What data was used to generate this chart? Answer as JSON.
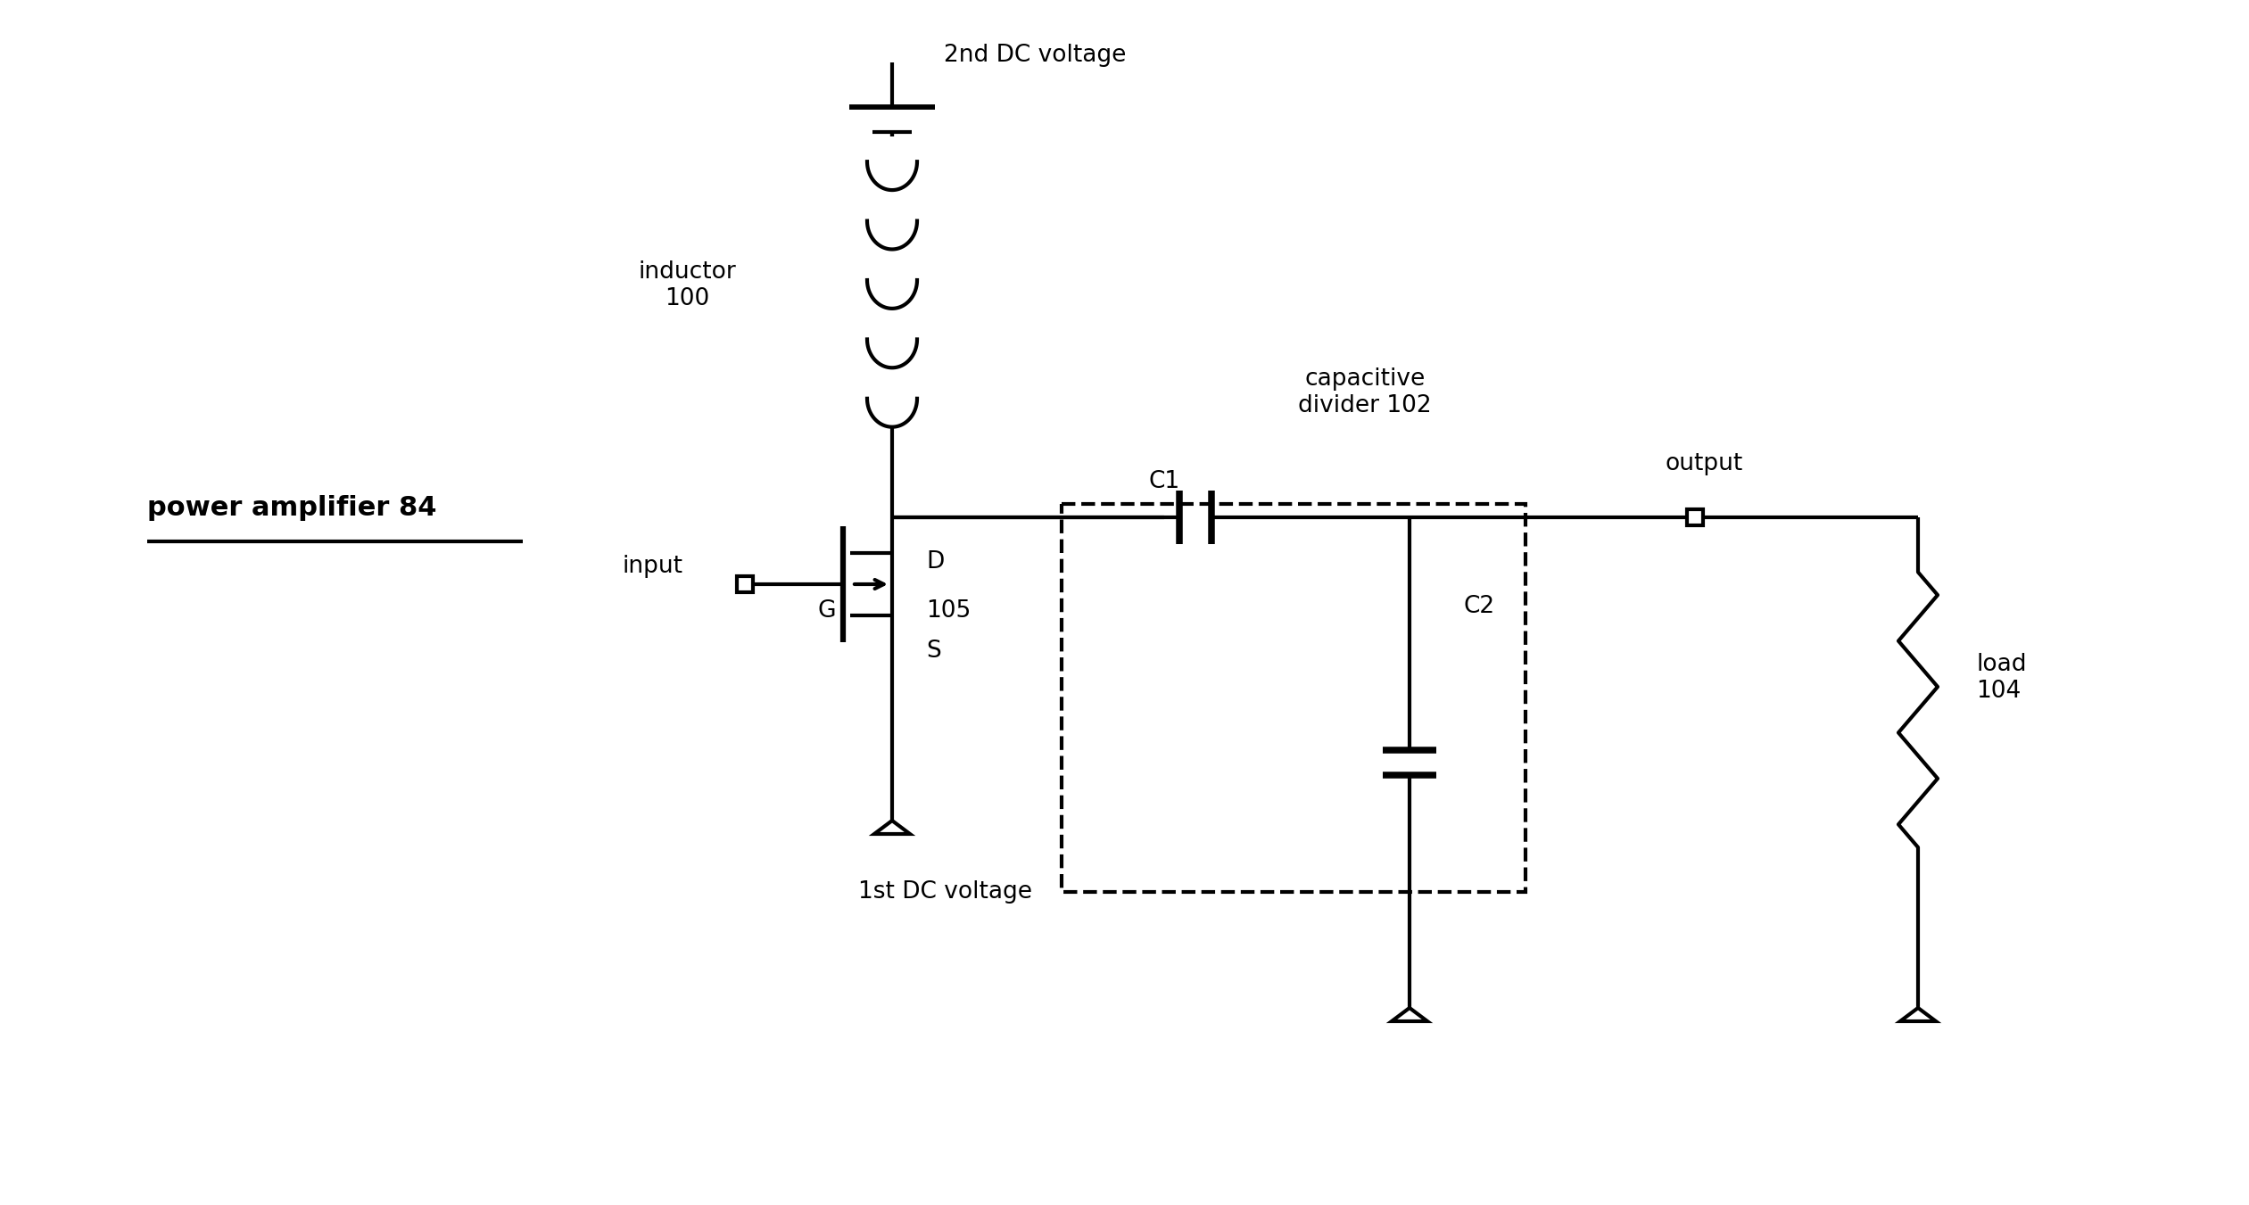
{
  "bg_color": "#ffffff",
  "lw": 3.0,
  "fig_w": 25.21,
  "fig_h": 13.51,
  "dpi": 100,
  "inductor_label": "inductor\n100",
  "dc2_label": "2nd DC voltage",
  "dc1_label": "1st DC voltage",
  "cap_div_label": "capacitive\ndivider 102",
  "C1_label": "C1",
  "C2_label": "C2",
  "output_label": "output",
  "load_label": "load\n104",
  "pa_label": "power amplifier 84",
  "input_label": "input",
  "D_label": "D",
  "G_label": "G",
  "S_label": "S",
  "mos_num": "105"
}
